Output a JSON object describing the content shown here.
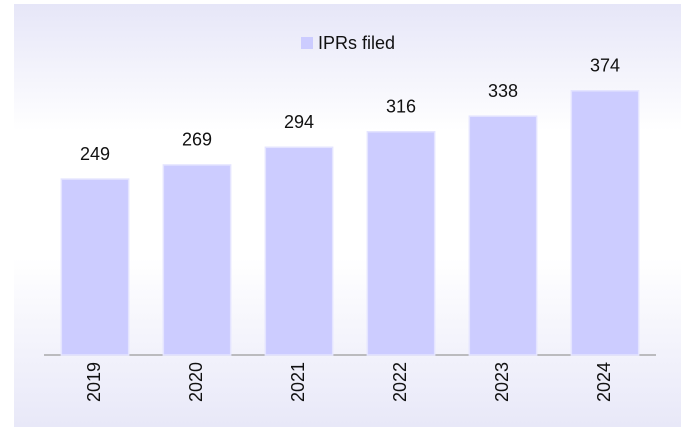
{
  "chart_data": {
    "type": "bar",
    "categories": [
      "2019",
      "2020",
      "2021",
      "2022",
      "2023",
      "2024"
    ],
    "series": [
      {
        "name": "IPRs filed",
        "color": "#ccccff",
        "values": [
          249,
          269,
          294,
          316,
          338,
          374
        ]
      }
    ],
    "ylim": [
      0,
      460
    ],
    "legend": "top"
  }
}
